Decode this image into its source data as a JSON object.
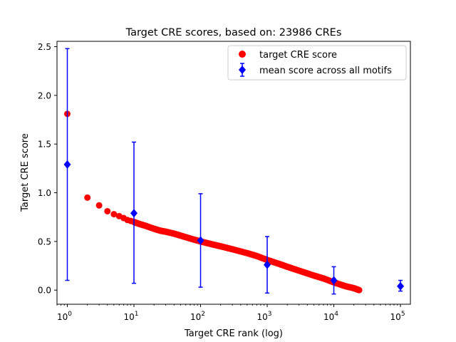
{
  "chart_data": {
    "type": "scatter",
    "title": "Target CRE scores, based on: 23986 CREs",
    "xlabel": "Target CRE rank (log)",
    "ylabel": "Target CRE score",
    "xscale": "log",
    "xlim": [
      0.7,
      141000
    ],
    "ylim": [
      -0.145,
      2.555
    ],
    "xticks": [
      {
        "base": "10",
        "exp": "0",
        "value": 1
      },
      {
        "base": "10",
        "exp": "1",
        "value": 10
      },
      {
        "base": "10",
        "exp": "2",
        "value": 100
      },
      {
        "base": "10",
        "exp": "3",
        "value": 1000
      },
      {
        "base": "10",
        "exp": "4",
        "value": 10000
      },
      {
        "base": "10",
        "exp": "5",
        "value": 100000
      }
    ],
    "yticks": [
      "0.0",
      "0.5",
      "1.0",
      "1.5",
      "2.0",
      "2.5"
    ],
    "legend_position": "top-right",
    "grid": false,
    "series": [
      {
        "name": "target CRE score",
        "marker": "circle",
        "color": "#ff0000",
        "points": [
          [
            1,
            1.81
          ],
          [
            2,
            0.95
          ],
          [
            3,
            0.87
          ],
          [
            4,
            0.81
          ],
          [
            5,
            0.78
          ],
          [
            6,
            0.76
          ],
          [
            7,
            0.74
          ],
          [
            8,
            0.72
          ],
          [
            9,
            0.71
          ],
          [
            10,
            0.7
          ],
          [
            12,
            0.68
          ],
          [
            15,
            0.66
          ],
          [
            20,
            0.63
          ],
          [
            25,
            0.61
          ],
          [
            30,
            0.6
          ],
          [
            40,
            0.58
          ],
          [
            50,
            0.56
          ],
          [
            70,
            0.53
          ],
          [
            100,
            0.5
          ],
          [
            150,
            0.47
          ],
          [
            200,
            0.45
          ],
          [
            300,
            0.42
          ],
          [
            500,
            0.38
          ],
          [
            700,
            0.35
          ],
          [
            1000,
            0.31
          ],
          [
            1500,
            0.27
          ],
          [
            2000,
            0.24
          ],
          [
            3000,
            0.2
          ],
          [
            5000,
            0.15
          ],
          [
            7000,
            0.12
          ],
          [
            10000,
            0.08
          ],
          [
            15000,
            0.04
          ],
          [
            20000,
            0.02
          ],
          [
            23986,
            0.0
          ]
        ]
      },
      {
        "name": "mean score across all motifs",
        "marker": "diamond",
        "color": "#0000ff",
        "points": [
          {
            "x": 1,
            "y": 1.29,
            "low": 0.1,
            "high": 2.48
          },
          {
            "x": 10,
            "y": 0.79,
            "low": 0.07,
            "high": 1.52
          },
          {
            "x": 100,
            "y": 0.51,
            "low": 0.03,
            "high": 0.99
          },
          {
            "x": 1000,
            "y": 0.26,
            "low": -0.03,
            "high": 0.55
          },
          {
            "x": 10000,
            "y": 0.1,
            "low": -0.04,
            "high": 0.24
          },
          {
            "x": 100000,
            "y": 0.04,
            "low": -0.01,
            "high": 0.1
          }
        ]
      }
    ]
  }
}
